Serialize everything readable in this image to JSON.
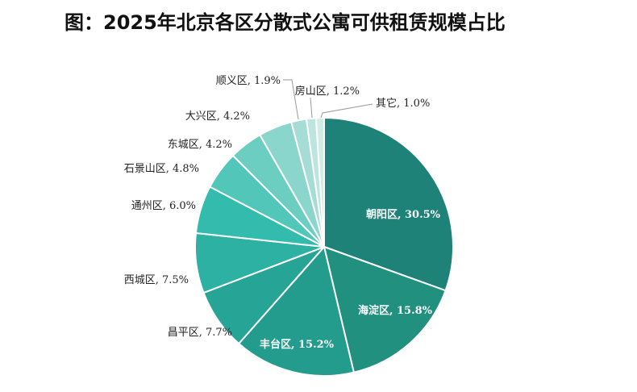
{
  "page": {
    "title": "图：2025年北京各区分散式公寓可供租赁规模占比"
  },
  "chart_data": {
    "type": "pie",
    "title": "图：2025年北京各区分散式公寓可供租赁规模占比",
    "unit": "%",
    "slices": [
      {
        "label": "朝阳区",
        "value": 30.5,
        "display": "朝阳区, 30.5%",
        "color": "#1e8278"
      },
      {
        "label": "海淀区",
        "value": 15.8,
        "display": "海淀区, 15.8%",
        "color": "#21907f"
      },
      {
        "label": "丰台区",
        "value": 15.2,
        "display": "丰台区, 15.2%",
        "color": "#239c8d"
      },
      {
        "label": "昌平区",
        "value": 7.7,
        "display": "昌平区, 7.7%",
        "color": "#26a596"
      },
      {
        "label": "西城区",
        "value": 7.5,
        "display": "西城区, 7.5%",
        "color": "#2cb1a3"
      },
      {
        "label": "通州区",
        "value": 6.0,
        "display": "通州区, 6.0%",
        "color": "#33bcad"
      },
      {
        "label": "石景山区",
        "value": 4.8,
        "display": "石景山区, 4.8%",
        "color": "#52c6b8"
      },
      {
        "label": "东城区",
        "value": 4.2,
        "display": "东城区, 4.2%",
        "color": "#6ccdc1"
      },
      {
        "label": "大兴区",
        "value": 4.2,
        "display": "大兴区, 4.2%",
        "color": "#8ad6cc"
      },
      {
        "label": "顺义区",
        "value": 1.9,
        "display": "顺义区, 1.9%",
        "color": "#a5ddd6"
      },
      {
        "label": "房山区",
        "value": 1.2,
        "display": "房山区, 1.2%",
        "color": "#bde5df"
      },
      {
        "label": "其它",
        "value": 1.0,
        "display": "其它, 1.0%",
        "color": "#cfece7"
      }
    ]
  }
}
